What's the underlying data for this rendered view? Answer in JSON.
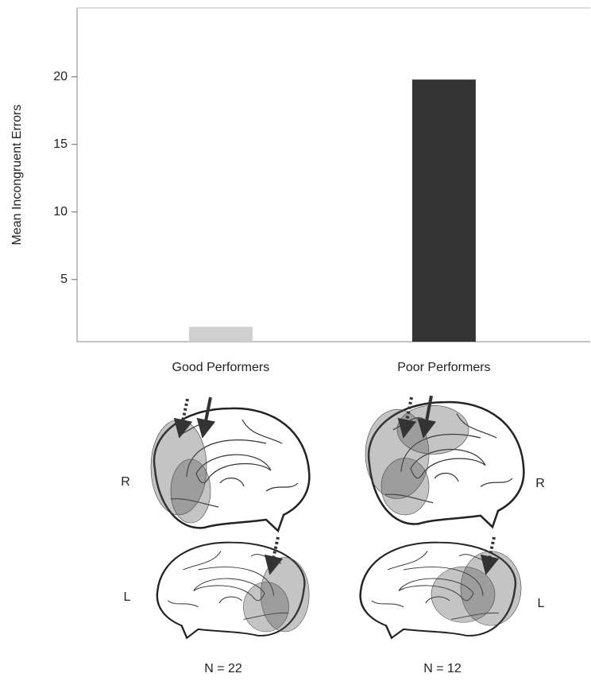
{
  "chart_data": {
    "type": "bar",
    "y_label": "Mean Incongruent Errors",
    "categories": [
      "Good Performers",
      "Poor Performers"
    ],
    "values": [
      1.5,
      19.8
    ],
    "colors": [
      "#cfcfcf",
      "#333333"
    ],
    "ylim": [
      0.4,
      25.1
    ],
    "yticks": [
      5,
      10,
      15,
      20
    ]
  },
  "brain_panels": [
    {
      "top_label": "R",
      "bottom_label": "L",
      "n_label": "N = 22"
    },
    {
      "top_label": "R",
      "bottom_label": "L",
      "n_label": "N = 12"
    }
  ]
}
